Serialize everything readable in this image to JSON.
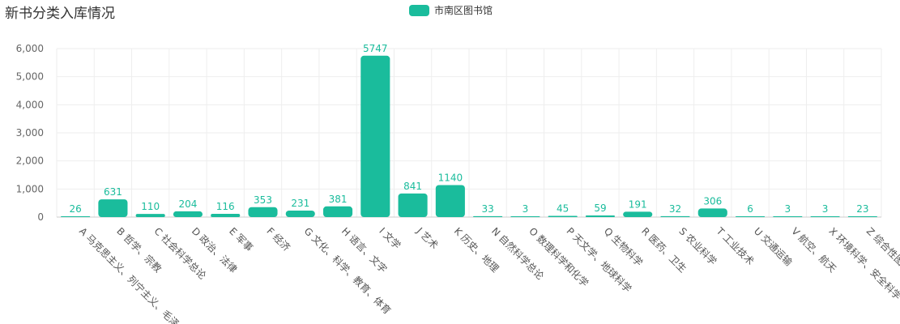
{
  "header": {
    "title": "新书分类入库情况"
  },
  "colors": {
    "bar": "#1abc9c",
    "grid": "#eeeeee",
    "axis": "#cccccc"
  },
  "chart_data": {
    "type": "bar",
    "title": "新书分类入库情况",
    "legend_position": "top-center",
    "grid": true,
    "ylim": [
      0,
      6000
    ],
    "yticks": [
      0,
      1000,
      2000,
      3000,
      4000,
      5000,
      6000
    ],
    "ytick_labels": [
      "0",
      "1,000",
      "2,000",
      "3,000",
      "4,000",
      "5,000",
      "6,000"
    ],
    "categories": [
      "A 马克思主义、列宁主义、毛泽",
      "B 哲学、宗教",
      "C 社会科学总论",
      "D 政治、法律",
      "E 军事",
      "F 经济",
      "G 文化、科学、教育、体育",
      "H 语言、文字",
      "I 文学",
      "J 艺术",
      "K 历史、地理",
      "N 自然科学总论",
      "O 数理科学和化学",
      "P 天文学、地球科学",
      "Q 生物科学",
      "R 医药、卫生",
      "S 农业科学",
      "T 工业技术",
      "U 交通运输",
      "V 航空、航天",
      "X 环境科学、安全科学",
      "Z 综合性图书"
    ],
    "series": [
      {
        "name": "市南区图书馆",
        "values": [
          26,
          631,
          110,
          204,
          116,
          353,
          231,
          381,
          5747,
          841,
          1140,
          33,
          3,
          45,
          59,
          191,
          32,
          306,
          6,
          3,
          3,
          23
        ],
        "value_labels": [
          "26",
          "631",
          "110",
          "204",
          "116",
          "353",
          "231",
          "381",
          "5747",
          "841",
          "1140",
          "33",
          "3",
          "45",
          "59",
          "191",
          "32",
          "306",
          "6",
          "3",
          "3",
          "23"
        ]
      }
    ]
  }
}
